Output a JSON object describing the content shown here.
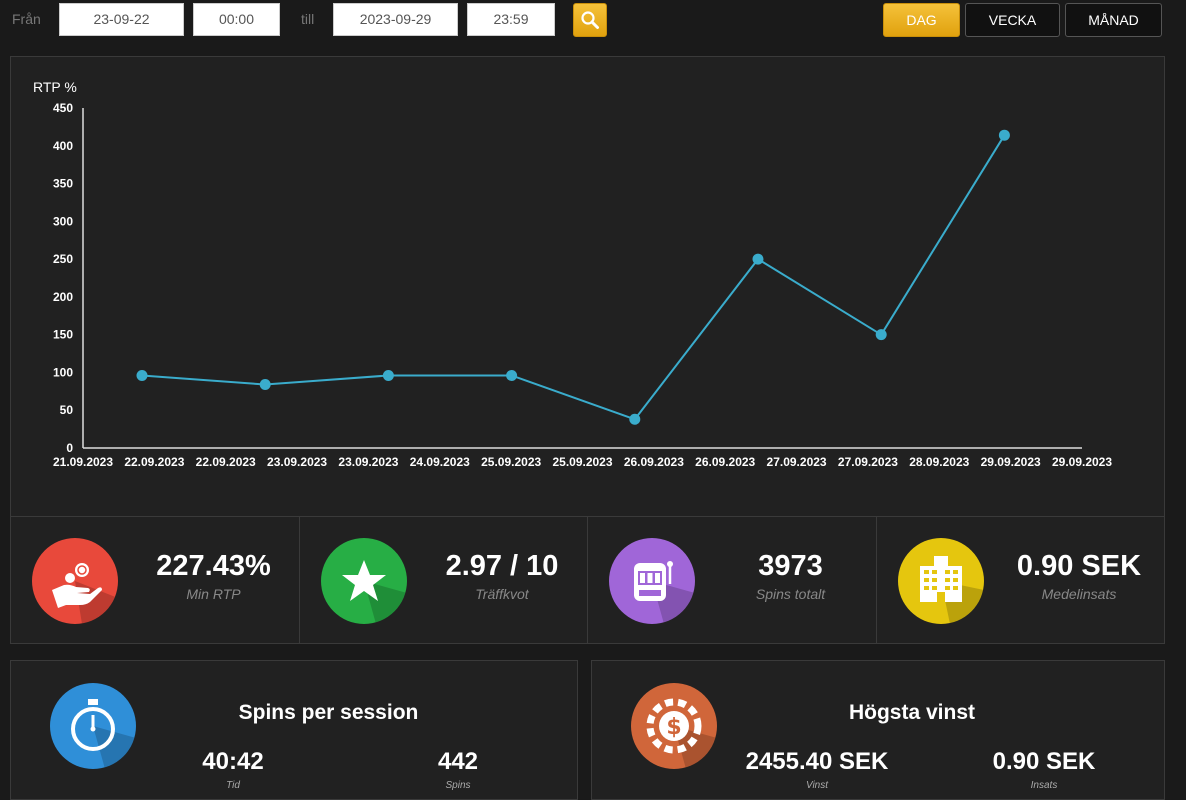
{
  "filter": {
    "from_label": "Från",
    "from_date": "23-09-22",
    "from_time": "00:00",
    "to_label": "till",
    "to_date": "2023-09-29",
    "to_time": "23:59",
    "search_icon": "search-icon"
  },
  "periods": {
    "day": "DAG",
    "week": "VECKA",
    "month": "MÅNAD",
    "active": "day"
  },
  "chart_data": {
    "type": "line",
    "ylabel": "RTP %",
    "ylim": [
      0,
      450
    ],
    "yticks": [
      0,
      50,
      100,
      150,
      200,
      250,
      300,
      350,
      400,
      450
    ],
    "xtick_labels": [
      "21.09.2023",
      "22.09.2023",
      "22.09.2023",
      "23.09.2023",
      "23.09.2023",
      "24.09.2023",
      "25.09.2023",
      "25.09.2023",
      "26.09.2023",
      "26.09.2023",
      "27.09.2023",
      "27.09.2023",
      "28.09.2023",
      "29.09.2023",
      "29.09.2023"
    ],
    "x": [
      "2023-09-22",
      "2023-09-23",
      "2023-09-24",
      "2023-09-25",
      "2023-09-26",
      "2023-09-27",
      "2023-09-28",
      "2023-09-29"
    ],
    "values": [
      96,
      84,
      96,
      96,
      38,
      250,
      150,
      414
    ],
    "color": "#3aaccc"
  },
  "stats": [
    {
      "value": "227.43%",
      "label": "Min RTP",
      "icon": "money-hand-icon",
      "color": "#e8493b"
    },
    {
      "value": "2.97 / 10",
      "label": "Träffkvot",
      "icon": "star-icon",
      "color": "#27ae45"
    },
    {
      "value": "3973",
      "label": "Spins totalt",
      "icon": "slot-machine-icon",
      "color": "#a066d8"
    },
    {
      "value": "0.90 SEK",
      "label": "Medelinsats",
      "icon": "building-icon",
      "color": "#e5c60e"
    }
  ],
  "session": {
    "title": "Spins per session",
    "time_value": "40:42",
    "time_label": "Tid",
    "spins_value": "442",
    "spins_label": "Spins",
    "icon": "stopwatch-icon",
    "color": "#2f8fd8"
  },
  "top_win": {
    "title": "Högsta vinst",
    "win_value": "2455.40 SEK",
    "win_label": "Vinst",
    "bet_value": "0.90 SEK",
    "bet_label": "Insats",
    "icon": "casino-chip-icon",
    "color": "#d0663a"
  }
}
